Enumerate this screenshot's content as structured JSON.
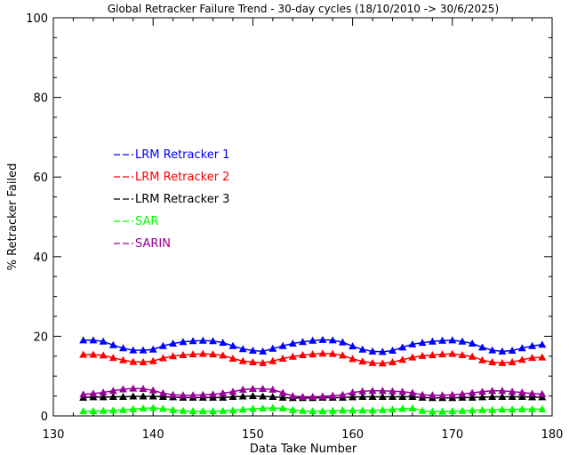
{
  "chart_data": {
    "type": "line",
    "title": "Global Retracker Failure Trend - 30-day cycles (18/10/2010 -> 30/6/2025)",
    "xlabel": "Data Take Number",
    "ylabel": "% Retracker Failed",
    "xlim": [
      130,
      180
    ],
    "ylim": [
      0,
      100
    ],
    "x_ticks": [
      "130",
      "140",
      "150",
      "160",
      "170",
      "180"
    ],
    "y_ticks": [
      "0",
      "20",
      "40",
      "60",
      "80",
      "100"
    ],
    "x_tick_values": [
      130,
      140,
      150,
      160,
      170,
      180
    ],
    "y_tick_values": [
      0,
      20,
      40,
      60,
      80,
      100
    ],
    "legend_placement": "left-center",
    "marker": "triangle",
    "grid": false,
    "x": [
      133,
      134,
      135,
      136,
      137,
      138,
      139,
      140,
      141,
      142,
      143,
      144,
      145,
      146,
      147,
      148,
      149,
      150,
      151,
      152,
      153,
      154,
      155,
      156,
      157,
      158,
      159,
      160,
      161,
      162,
      163,
      164,
      165,
      166,
      167,
      168,
      169,
      170,
      171,
      172,
      173,
      174,
      175,
      176,
      177,
      178,
      179
    ],
    "series": [
      {
        "name": "LRM Retracker 1",
        "color": "#0000ff",
        "values": [
          19.0,
          19.0,
          18.7,
          17.8,
          17.0,
          16.5,
          16.5,
          16.7,
          17.6,
          18.2,
          18.6,
          18.8,
          18.9,
          18.8,
          18.4,
          17.6,
          16.8,
          16.4,
          16.2,
          16.9,
          17.6,
          18.2,
          18.6,
          18.9,
          19.1,
          19.0,
          18.5,
          17.5,
          16.7,
          16.2,
          16.1,
          16.4,
          17.2,
          18.0,
          18.4,
          18.7,
          18.9,
          19.0,
          18.7,
          18.2,
          17.2,
          16.5,
          16.2,
          16.4,
          17.0,
          17.6,
          17.9
        ]
      },
      {
        "name": "LRM Retracker 2",
        "color": "#ff0000",
        "values": [
          15.4,
          15.4,
          15.2,
          14.6,
          14.0,
          13.6,
          13.5,
          13.8,
          14.5,
          15.0,
          15.3,
          15.5,
          15.6,
          15.5,
          15.2,
          14.4,
          13.8,
          13.5,
          13.3,
          13.8,
          14.4,
          14.9,
          15.3,
          15.5,
          15.7,
          15.6,
          15.2,
          14.3,
          13.7,
          13.3,
          13.2,
          13.5,
          14.1,
          14.7,
          15.1,
          15.3,
          15.5,
          15.6,
          15.3,
          14.9,
          14.0,
          13.5,
          13.3,
          13.5,
          14.1,
          14.6,
          14.7
        ]
      },
      {
        "name": "LRM Retracker 3",
        "color": "#000000",
        "values": [
          4.6,
          4.7,
          4.7,
          4.8,
          4.8,
          4.9,
          4.9,
          4.9,
          4.8,
          4.7,
          4.6,
          4.6,
          4.6,
          4.6,
          4.6,
          4.8,
          4.9,
          5.0,
          4.9,
          4.8,
          4.6,
          4.5,
          4.5,
          4.5,
          4.6,
          4.6,
          4.6,
          4.7,
          4.8,
          4.8,
          4.8,
          4.8,
          4.8,
          4.8,
          4.6,
          4.5,
          4.5,
          4.5,
          4.6,
          4.6,
          4.7,
          4.8,
          4.8,
          4.8,
          4.8,
          4.7,
          4.7
        ]
      },
      {
        "name": "SAR",
        "color": "#00ff00",
        "values": [
          1.2,
          1.2,
          1.3,
          1.4,
          1.5,
          1.7,
          1.9,
          2.0,
          1.8,
          1.5,
          1.3,
          1.2,
          1.2,
          1.2,
          1.3,
          1.4,
          1.6,
          1.8,
          1.9,
          2.0,
          1.9,
          1.5,
          1.3,
          1.2,
          1.2,
          1.3,
          1.4,
          1.4,
          1.4,
          1.4,
          1.5,
          1.6,
          1.8,
          1.9,
          1.3,
          1.1,
          1.1,
          1.2,
          1.3,
          1.4,
          1.5,
          1.5,
          1.6,
          1.6,
          1.7,
          1.7,
          1.7
        ]
      },
      {
        "name": "SARIN",
        "color": "#990099",
        "values": [
          5.4,
          5.6,
          5.9,
          6.3,
          6.7,
          6.9,
          6.8,
          6.4,
          5.7,
          5.3,
          5.2,
          5.2,
          5.3,
          5.4,
          5.7,
          6.1,
          6.6,
          6.8,
          6.8,
          6.6,
          5.8,
          5.0,
          4.8,
          4.8,
          4.9,
          5.1,
          5.3,
          5.9,
          6.2,
          6.3,
          6.3,
          6.2,
          6.1,
          5.8,
          5.3,
          5.2,
          5.2,
          5.3,
          5.5,
          5.8,
          6.1,
          6.3,
          6.3,
          6.1,
          5.9,
          5.6,
          5.5
        ]
      }
    ]
  }
}
